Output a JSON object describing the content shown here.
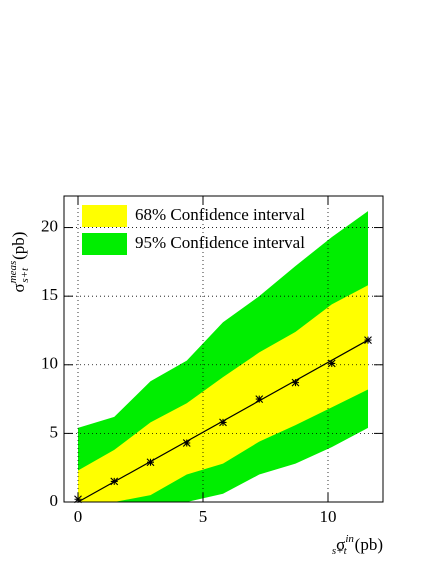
{
  "chart_data": {
    "type": "band",
    "x_label": {
      "symbol": "σ",
      "sup": "in",
      "sub": "s+t",
      "unit": "(pb)"
    },
    "y_label": {
      "symbol": "σ",
      "sup": "meas",
      "sub": "s+t",
      "unit": "(pb)"
    },
    "x": [
      0,
      1.45,
      2.9,
      4.35,
      5.8,
      7.25,
      8.7,
      10.15,
      11.6
    ],
    "bands": [
      {
        "name": "95% Confidence interval",
        "color": "#00ee00",
        "upper": [
          5.4,
          6.2,
          8.8,
          10.3,
          13.1,
          15.0,
          17.2,
          19.3,
          21.2
        ],
        "lower": [
          0,
          0,
          0,
          0,
          0.6,
          2.0,
          2.8,
          4.0,
          5.4
        ]
      },
      {
        "name": "68% Confidence interval",
        "color": "#ffff00",
        "upper": [
          2.3,
          3.8,
          5.8,
          7.2,
          9.1,
          10.9,
          12.4,
          14.4,
          15.8
        ],
        "lower": [
          0,
          0,
          0.5,
          2.0,
          2.8,
          4.4,
          5.6,
          6.9,
          8.2
        ]
      }
    ],
    "points": {
      "color": "#000000",
      "values": [
        0.2,
        1.5,
        2.9,
        4.3,
        5.8,
        7.5,
        8.7,
        10.1,
        11.8
      ]
    },
    "fit": {
      "color": "#000000",
      "x": [
        0,
        11.6
      ],
      "values": [
        0,
        11.8
      ]
    },
    "xlim": [
      -0.56,
      12.2
    ],
    "ylim": [
      0,
      22.3
    ],
    "xticks": [
      0,
      5,
      10
    ],
    "yticks": [
      0,
      5,
      10,
      15,
      20
    ],
    "grid": true
  }
}
